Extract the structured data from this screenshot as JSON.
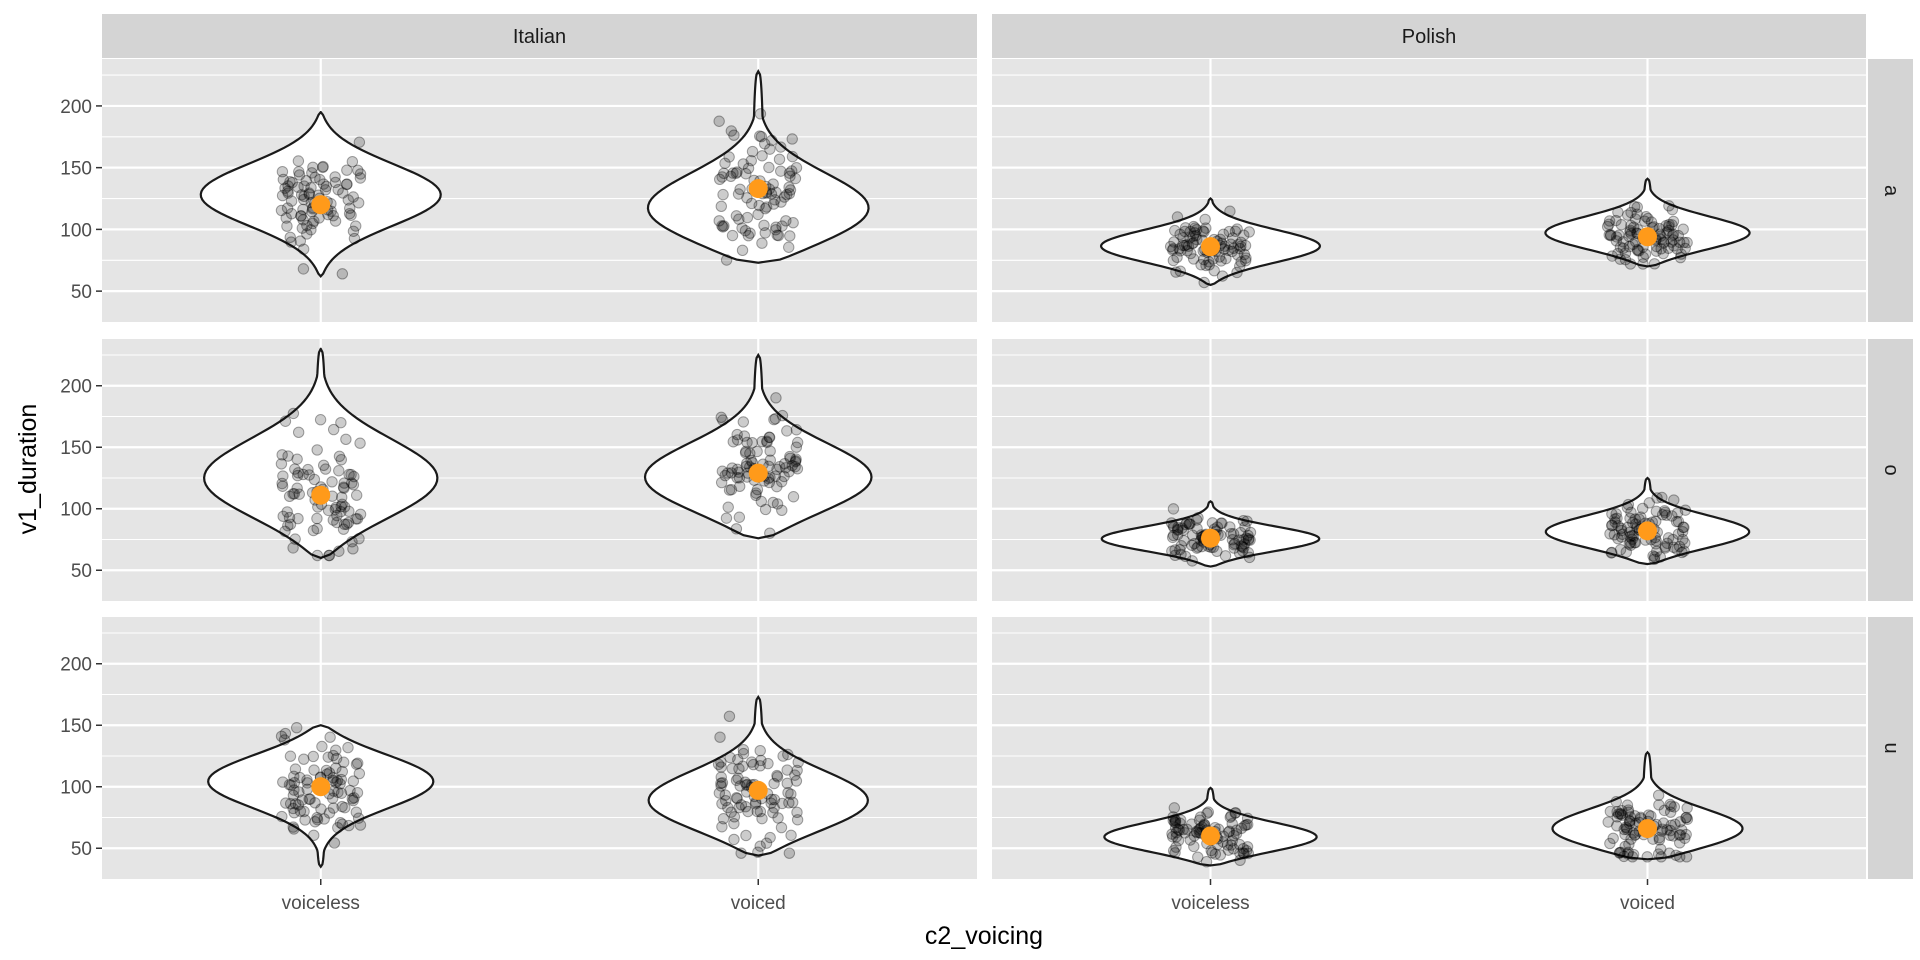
{
  "chart_data": {
    "type": "violin",
    "title": "",
    "xlabel": "c2_voicing",
    "ylabel": "v1_duration",
    "facet_cols": [
      "Italian",
      "Polish"
    ],
    "facet_rows": [
      "a",
      "o",
      "u"
    ],
    "categories": [
      "voiceless",
      "voiced"
    ],
    "y_ticks": [
      50,
      100,
      150,
      200
    ],
    "ylim": [
      25,
      238
    ],
    "grid": true,
    "colors": {
      "mean": "#ff9a1a",
      "points": "#000000",
      "panel": "#e5e5e5",
      "strip": "#d4d4d4"
    },
    "panels": [
      {
        "col": "Italian",
        "row": "a",
        "groups": [
          {
            "category": "voiceless",
            "mean": 120,
            "min": 62,
            "max": 195,
            "mode": 128,
            "spread": 0.6
          },
          {
            "category": "voiced",
            "mean": 133,
            "min": 73,
            "max": 228,
            "mode": 112,
            "spread": 0.62
          }
        ]
      },
      {
        "col": "Polish",
        "row": "a",
        "groups": [
          {
            "category": "voiceless",
            "mean": 86,
            "min": 55,
            "max": 125,
            "mode": 86,
            "spread": 0.5
          },
          {
            "category": "voiced",
            "mean": 94,
            "min": 70,
            "max": 141,
            "mode": 96,
            "spread": 0.45
          }
        ]
      },
      {
        "col": "Italian",
        "row": "o",
        "groups": [
          {
            "category": "voiceless",
            "mean": 111,
            "min": 60,
            "max": 230,
            "mode": 122,
            "spread": 0.6
          },
          {
            "category": "voiced",
            "mean": 129,
            "min": 76,
            "max": 225,
            "mode": 122,
            "spread": 0.6
          }
        ]
      },
      {
        "col": "Polish",
        "row": "o",
        "groups": [
          {
            "category": "voiceless",
            "mean": 76,
            "min": 53,
            "max": 106,
            "mode": 75,
            "spread": 0.5
          },
          {
            "category": "voiced",
            "mean": 82,
            "min": 55,
            "max": 125,
            "mode": 80,
            "spread": 0.45
          }
        ]
      },
      {
        "col": "Italian",
        "row": "u",
        "groups": [
          {
            "category": "voiceless",
            "mean": 100,
            "min": 35,
            "max": 150,
            "mode": 106,
            "spread": 0.55
          },
          {
            "category": "voiced",
            "mean": 97,
            "min": 44,
            "max": 173,
            "mode": 86,
            "spread": 0.55
          }
        ]
      },
      {
        "col": "Polish",
        "row": "u",
        "groups": [
          {
            "category": "voiceless",
            "mean": 60,
            "min": 36,
            "max": 99,
            "mode": 58,
            "spread": 0.5
          },
          {
            "category": "voiced",
            "mean": 66,
            "min": 41,
            "max": 128,
            "mode": 63,
            "spread": 0.45
          }
        ]
      }
    ]
  }
}
